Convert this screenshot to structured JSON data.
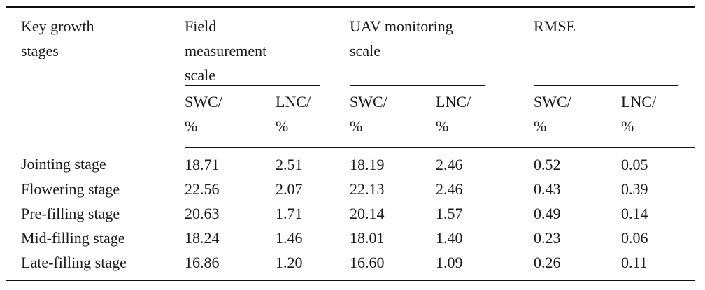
{
  "table": {
    "col1_header": "Key growth stages",
    "groups": [
      {
        "label": "Field measurement scale",
        "subs": [
          "SWC/\n%",
          "LNC/\n%"
        ]
      },
      {
        "label": "UAV monitoring scale",
        "subs": [
          "SWC/\n%",
          "LNC/\n%"
        ]
      },
      {
        "label": "RMSE",
        "subs": [
          "SWC/\n%",
          "LNC/\n%"
        ]
      }
    ],
    "rows": [
      {
        "stage": "Jointing stage",
        "values": [
          "18.71",
          "2.51",
          "18.19",
          "2.46",
          "0.52",
          "0.05"
        ]
      },
      {
        "stage": "Flowering stage",
        "values": [
          "22.56",
          "2.07",
          "22.13",
          "2.46",
          "0.43",
          "0.39"
        ]
      },
      {
        "stage": "Pre-filling stage",
        "values": [
          "20.63",
          "1.71",
          "20.14",
          "1.57",
          "0.49",
          "0.14"
        ]
      },
      {
        "stage": "Mid-filling stage",
        "values": [
          "18.24",
          "1.46",
          "18.01",
          "1.40",
          "0.23",
          "0.06"
        ]
      },
      {
        "stage": "Late-filling stage",
        "values": [
          "16.86",
          "1.20",
          "16.60",
          "1.09",
          "0.26",
          "0.11"
        ]
      }
    ]
  },
  "colors": {
    "text": "#1a1a1a",
    "rule": "#111111",
    "background": "#ffffff"
  }
}
